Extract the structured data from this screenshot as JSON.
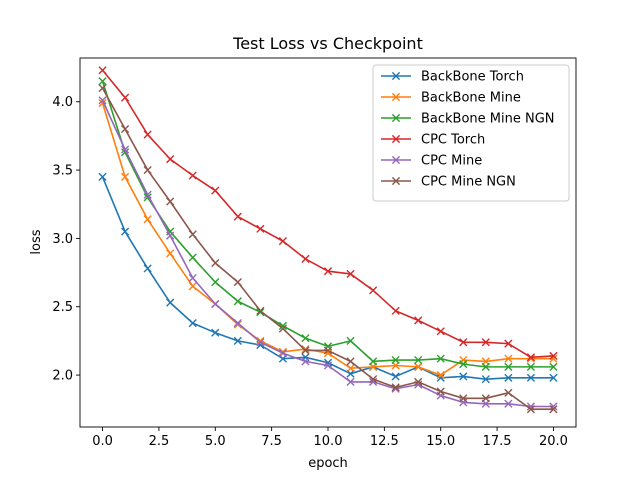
{
  "chart_data": {
    "type": "line",
    "title": "Test Loss vs Checkpoint",
    "xlabel": "epoch",
    "ylabel": "loss",
    "xlim": [
      -1.0,
      21.0
    ],
    "ylim": [
      1.62,
      4.32
    ],
    "xticks": [
      0.0,
      2.5,
      5.0,
      7.5,
      10.0,
      12.5,
      15.0,
      17.5,
      20.0
    ],
    "xtick_labels": [
      "0.0",
      "2.5",
      "5.0",
      "7.5",
      "10.0",
      "12.5",
      "15.0",
      "17.5",
      "20.0"
    ],
    "yticks": [
      2.0,
      2.5,
      3.0,
      3.5,
      4.0
    ],
    "ytick_labels": [
      "2.0",
      "2.5",
      "3.0",
      "3.5",
      "4.0"
    ],
    "grid": false,
    "legend_position": "top-right",
    "marker": "x",
    "x": [
      0,
      1,
      2,
      3,
      4,
      5,
      6,
      7,
      8,
      9,
      10,
      11,
      12,
      13,
      14,
      15,
      16,
      17,
      18,
      19,
      20
    ],
    "series": [
      {
        "name": "BackBone Torch",
        "color": "#1f77b4",
        "values": [
          3.45,
          3.05,
          2.78,
          2.53,
          2.38,
          2.31,
          2.25,
          2.22,
          2.12,
          2.13,
          2.09,
          2.01,
          2.06,
          1.99,
          2.06,
          1.98,
          1.99,
          1.97,
          1.98,
          1.98,
          1.98
        ]
      },
      {
        "name": "BackBone Mine",
        "color": "#ff7f0e",
        "values": [
          3.99,
          3.45,
          3.14,
          2.89,
          2.65,
          2.52,
          2.37,
          2.25,
          2.17,
          2.19,
          2.16,
          2.05,
          2.06,
          2.07,
          2.06,
          2.0,
          2.11,
          2.1,
          2.12,
          2.12,
          2.12
        ]
      },
      {
        "name": "BackBone Mine NGN",
        "color": "#2ca02c",
        "values": [
          4.15,
          3.63,
          3.3,
          3.05,
          2.86,
          2.68,
          2.54,
          2.46,
          2.36,
          2.27,
          2.21,
          2.25,
          2.1,
          2.11,
          2.11,
          2.12,
          2.08,
          2.06,
          2.06,
          2.06,
          2.06
        ]
      },
      {
        "name": "CPC Torch",
        "color": "#d62728",
        "values": [
          4.23,
          4.03,
          3.76,
          3.58,
          3.46,
          3.35,
          3.16,
          3.07,
          2.98,
          2.85,
          2.76,
          2.74,
          2.62,
          2.47,
          2.4,
          2.32,
          2.24,
          2.24,
          2.23,
          2.13,
          2.14
        ]
      },
      {
        "name": "CPC Mine",
        "color": "#9467bd",
        "values": [
          4.01,
          3.65,
          3.32,
          3.02,
          2.71,
          2.52,
          2.38,
          2.24,
          2.16,
          2.1,
          2.07,
          1.95,
          1.95,
          1.9,
          1.93,
          1.85,
          1.8,
          1.79,
          1.79,
          1.77,
          1.77
        ]
      },
      {
        "name": "CPC Mine NGN",
        "color": "#8c564b",
        "values": [
          4.1,
          3.8,
          3.5,
          3.27,
          3.03,
          2.82,
          2.68,
          2.47,
          2.34,
          2.18,
          2.18,
          2.1,
          1.97,
          1.91,
          1.95,
          1.88,
          1.83,
          1.83,
          1.87,
          1.75,
          1.75
        ]
      }
    ]
  }
}
